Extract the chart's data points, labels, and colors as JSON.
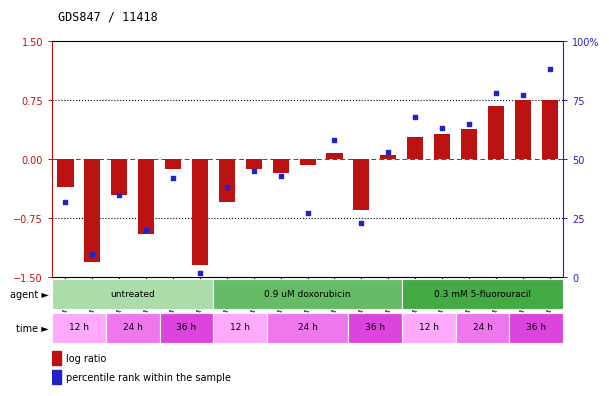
{
  "title": "GDS847 / 11418",
  "samples": [
    "GSM11709",
    "GSM11720",
    "GSM11726",
    "GSM11837",
    "GSM11725",
    "GSM11864",
    "GSM11687",
    "GSM11693",
    "GSM11727",
    "GSM11838",
    "GSM11681",
    "GSM11689",
    "GSM11704",
    "GSM11703",
    "GSM11705",
    "GSM11722",
    "GSM11730",
    "GSM11713",
    "GSM11728"
  ],
  "log_ratios": [
    -0.35,
    -1.3,
    -0.45,
    -0.95,
    -0.12,
    -1.35,
    -0.55,
    -0.12,
    -0.18,
    -0.08,
    0.08,
    -0.65,
    0.05,
    0.28,
    0.32,
    0.38,
    0.68,
    0.75,
    0.75
  ],
  "percentile_ranks": [
    32,
    10,
    35,
    20,
    42,
    2,
    38,
    45,
    43,
    27,
    58,
    23,
    53,
    68,
    63,
    65,
    78,
    77,
    88
  ],
  "bar_color": "#BB1111",
  "dot_color": "#2222CC",
  "ylim_left": [
    -1.5,
    1.5
  ],
  "ylim_right": [
    0,
    100
  ],
  "yticks_left": [
    -1.5,
    -0.75,
    0,
    0.75,
    1.5
  ],
  "yticks_right": [
    0,
    25,
    50,
    75,
    100
  ],
  "hlines_dotted": [
    0.75,
    -0.75
  ],
  "hline_red": 0.0,
  "agent_groups": [
    {
      "label": "untreated",
      "start": 0,
      "end": 6,
      "color": "#AADDAA"
    },
    {
      "label": "0.9 uM doxorubicin",
      "start": 6,
      "end": 13,
      "color": "#66BB66"
    },
    {
      "label": "0.3 mM 5-fluorouracil",
      "start": 13,
      "end": 19,
      "color": "#44AA44"
    }
  ],
  "time_groups": [
    {
      "label": "12 h",
      "start": 0,
      "end": 2,
      "color": "#FFAAFF"
    },
    {
      "label": "24 h",
      "start": 2,
      "end": 4,
      "color": "#EE77EE"
    },
    {
      "label": "36 h",
      "start": 4,
      "end": 6,
      "color": "#DD44DD"
    },
    {
      "label": "12 h",
      "start": 6,
      "end": 8,
      "color": "#FFAAFF"
    },
    {
      "label": "24 h",
      "start": 8,
      "end": 11,
      "color": "#EE77EE"
    },
    {
      "label": "36 h",
      "start": 11,
      "end": 13,
      "color": "#DD44DD"
    },
    {
      "label": "12 h",
      "start": 13,
      "end": 15,
      "color": "#FFAAFF"
    },
    {
      "label": "24 h",
      "start": 15,
      "end": 17,
      "color": "#EE77EE"
    },
    {
      "label": "36 h",
      "start": 17,
      "end": 19,
      "color": "#DD44DD"
    }
  ]
}
